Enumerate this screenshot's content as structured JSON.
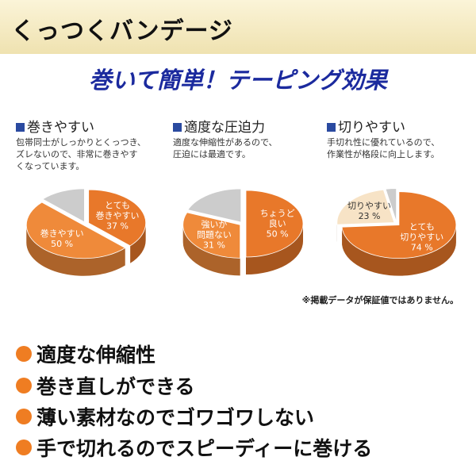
{
  "header": {
    "title": "くっつくバンデージ"
  },
  "subtitle": "巻いて簡単！テーピング効果",
  "chart_data": [
    {
      "type": "pie",
      "title": "巻きやすい",
      "description": "包帯同士がしっかりとくっつき、\nズレないので、非常に巻きやす\nくなっています。",
      "categories": [
        "とても\n巻きやすい",
        "巻きやすい",
        null
      ],
      "values": [
        37,
        50,
        13
      ],
      "value_labels": [
        "37 %",
        "50 %",
        null
      ],
      "colors": [
        "#e8782a",
        "#ef8a3a",
        "#cccccc"
      ]
    },
    {
      "type": "pie",
      "title": "適度な圧迫力",
      "description": "適度な伸縮性があるので、\n圧迫には最適です。",
      "categories": [
        "ちょうど\n良い",
        "強いが\n問題ない",
        null
      ],
      "values": [
        50,
        31,
        19
      ],
      "value_labels": [
        "50 %",
        "31 %",
        null
      ],
      "colors": [
        "#e8782a",
        "#ef8a3a",
        "#cccccc"
      ]
    },
    {
      "type": "pie",
      "title": "切りやすい",
      "description": "手切れ性に優れているので、\n作業性が格段に向上します。",
      "categories": [
        "とても\n切りやすい",
        "切りやすい",
        null
      ],
      "values": [
        74,
        23,
        3
      ],
      "value_labels": [
        "74 %",
        "23 %",
        null
      ],
      "colors": [
        "#e8782a",
        "#f7e3c6",
        "#cccccc"
      ]
    }
  ],
  "note": "※掲載データが保証値ではありません。",
  "features": [
    "適度な伸縮性",
    "巻き直しができる",
    "薄い素材なのでゴワゴワしない",
    "手で切れるのでスピーディーに巻ける"
  ]
}
